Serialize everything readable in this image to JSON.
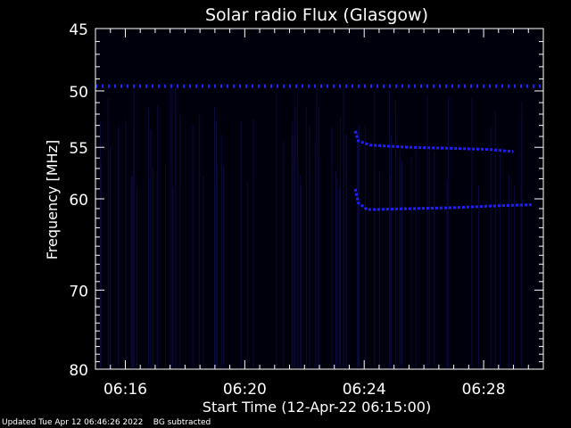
{
  "footer": {
    "updated": "Updated Tue Apr 12 06:46:26 2022",
    "mode": "BG subtracted"
  },
  "chart_data": {
    "type": "heatmap",
    "title": "Solar radio Flux (Glasgow)",
    "xlabel": "Start Time (12-Apr-22 06:15:00)",
    "ylabel": "Frequency [MHz]",
    "x_ticks": [
      {
        "label": "06:16",
        "minutes": 1
      },
      {
        "label": "06:20",
        "minutes": 5
      },
      {
        "label": "06:24",
        "minutes": 9
      },
      {
        "label": "06:28",
        "minutes": 13
      }
    ],
    "xlim_minutes": [
      0,
      15
    ],
    "y_ticks": [
      45,
      50,
      55,
      60,
      70,
      80
    ],
    "ylim": [
      45,
      80
    ],
    "y_scale": "log",
    "colors": {
      "background": "#000000",
      "signal": "#2020ff",
      "axes": "#ffffff"
    },
    "features": [
      {
        "type": "constant-band",
        "freq_mhz": 49.6,
        "start_min": 0,
        "end_min": 15
      },
      {
        "type": "drifting-band",
        "points": [
          [
            8.7,
            53.5
          ],
          [
            8.8,
            54.4
          ],
          [
            9.2,
            54.8
          ],
          [
            10.5,
            55.0
          ],
          [
            12.0,
            55.1
          ],
          [
            13.2,
            55.2
          ],
          [
            14.0,
            55.4
          ]
        ]
      },
      {
        "type": "drifting-band",
        "points": [
          [
            8.7,
            59.0
          ],
          [
            8.8,
            60.4
          ],
          [
            9.1,
            61.1
          ],
          [
            10.5,
            61.0
          ],
          [
            12.0,
            60.9
          ],
          [
            13.5,
            60.7
          ],
          [
            14.6,
            60.6
          ]
        ]
      }
    ]
  }
}
